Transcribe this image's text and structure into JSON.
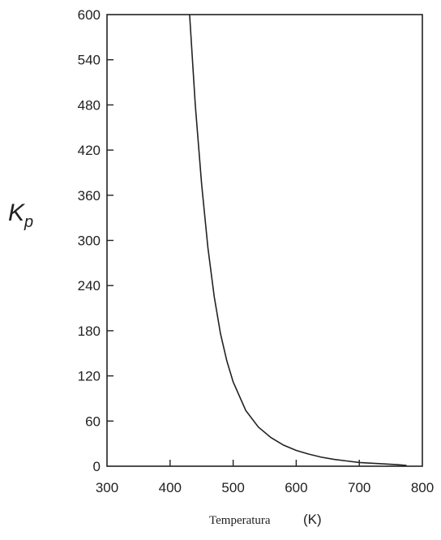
{
  "chart_data": {
    "type": "line",
    "xlabel": "Temperatura",
    "xunit": "(K)",
    "ylabel": "K",
    "ylabel_subscript": "p",
    "xlim": [
      300,
      800
    ],
    "ylim": [
      0,
      600
    ],
    "xticks": [
      300,
      400,
      500,
      600,
      700,
      800
    ],
    "yticks": [
      0,
      60,
      120,
      180,
      240,
      300,
      360,
      420,
      480,
      540,
      600
    ],
    "grid": false,
    "line_color": "#222222",
    "series": [
      {
        "x": [
          431,
          440,
          450,
          460,
          470,
          480,
          490,
          500,
          520,
          540,
          560,
          580,
          600,
          620,
          640,
          660,
          680,
          700,
          720,
          740,
          760,
          775
        ],
        "y": [
          600,
          480,
          375,
          290,
          225,
          176,
          140,
          112,
          74,
          52,
          38,
          28,
          21,
          16,
          12,
          9,
          7,
          5,
          4,
          3,
          2,
          1
        ]
      }
    ]
  }
}
